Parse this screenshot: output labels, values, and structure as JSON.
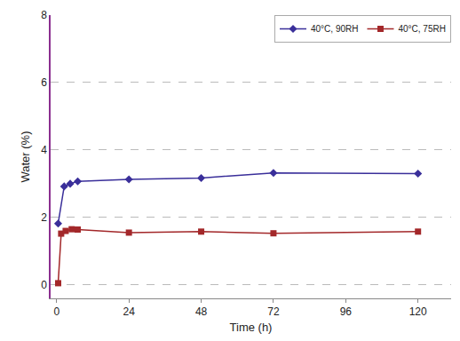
{
  "chart_data": {
    "type": "line",
    "x_label": "Time (h)",
    "y_label": "Water (%)",
    "xlim": [
      -2,
      131
    ],
    "xticks": [
      0,
      24,
      48,
      72,
      96,
      120
    ],
    "ylim": [
      -0.4,
      8
    ],
    "yticks": [
      0,
      2,
      4,
      6,
      8
    ],
    "grid": true,
    "legend": "upper right",
    "series": [
      {
        "name": "40°C, 90RH",
        "color": "#3a2f9a",
        "marker": "diamond",
        "line_style": "solid",
        "x": [
          0.5,
          2.5,
          4.5,
          7,
          24,
          48,
          72,
          120
        ],
        "values": [
          1.82,
          2.92,
          3.0,
          3.07,
          3.13,
          3.17,
          3.32,
          3.3
        ]
      },
      {
        "name": "40°C, 75RH",
        "color": "#a3282a",
        "marker": "square",
        "line_style": "solid",
        "x": [
          0.5,
          1.5,
          3,
          5,
          7,
          24,
          48,
          72,
          120
        ],
        "values": [
          0.05,
          1.52,
          1.6,
          1.65,
          1.64,
          1.55,
          1.58,
          1.53,
          1.58
        ]
      }
    ]
  }
}
